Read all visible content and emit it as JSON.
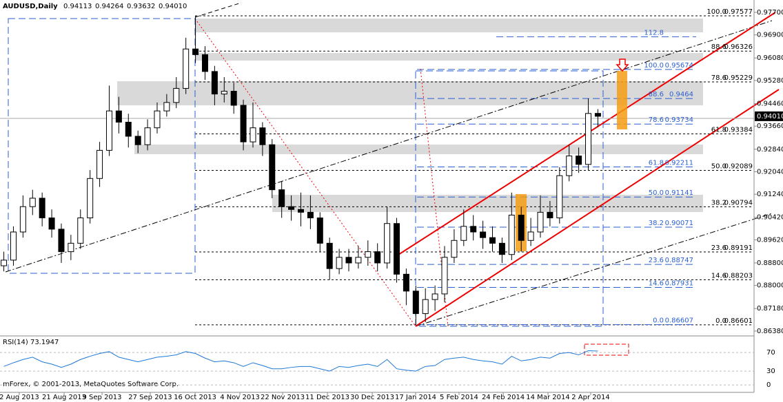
{
  "header": {
    "symbol": "AUDUSD,Daily",
    "ohlc_labels": [
      "0.94113",
      "0.94264",
      "0.93632",
      "0.94010"
    ],
    "copyright": "mForex, © 2001-2013, MetaQuotes Software Corp."
  },
  "chart_data": {
    "type": "candlestick",
    "open": [
      0.887,
      0.889,
      0.899,
      0.908,
      0.911,
      0.904,
      0.9,
      0.892,
      0.895,
      0.904,
      0.918,
      0.928,
      0.942,
      0.938,
      0.933,
      0.93,
      0.936,
      0.942,
      0.945,
      0.95,
      0.964,
      0.962,
      0.956,
      0.948,
      0.949,
      0.944,
      0.931,
      0.936,
      0.93,
      0.914,
      0.908,
      0.907,
      0.906,
      0.904,
      0.895,
      0.886,
      0.89,
      0.888,
      0.89,
      0.892,
      0.888,
      0.902,
      0.884,
      0.878,
      0.87,
      0.875,
      0.877,
      0.89,
      0.896,
      0.901,
      0.899,
      0.897,
      0.895,
      0.891,
      0.905,
      0.896,
      0.899,
      0.906,
      0.904,
      0.919,
      0.926,
      0.923,
      0.94113
    ],
    "high": [
      0.892,
      0.901,
      0.912,
      0.914,
      0.913,
      0.907,
      0.902,
      0.898,
      0.907,
      0.921,
      0.931,
      0.951,
      0.947,
      0.941,
      0.935,
      0.939,
      0.945,
      0.948,
      0.954,
      0.968,
      0.9757,
      0.965,
      0.958,
      0.954,
      0.952,
      0.946,
      0.945,
      0.938,
      0.932,
      0.917,
      0.912,
      0.913,
      0.912,
      0.906,
      0.897,
      0.893,
      0.893,
      0.894,
      0.896,
      0.895,
      0.908,
      0.904,
      0.886,
      0.88,
      0.879,
      0.88,
      0.894,
      0.9,
      0.907,
      0.905,
      0.903,
      0.901,
      0.897,
      0.913,
      0.908,
      0.904,
      0.912,
      0.91,
      0.922,
      0.93,
      0.929,
      0.9464,
      0.94264
    ],
    "low": [
      0.885,
      0.887,
      0.897,
      0.905,
      0.901,
      0.897,
      0.888,
      0.889,
      0.893,
      0.902,
      0.915,
      0.926,
      0.934,
      0.929,
      0.927,
      0.928,
      0.934,
      0.94,
      0.943,
      0.948,
      0.959,
      0.953,
      0.944,
      0.945,
      0.941,
      0.928,
      0.929,
      0.926,
      0.911,
      0.904,
      0.903,
      0.901,
      0.9,
      0.892,
      0.882,
      0.884,
      0.885,
      0.886,
      0.887,
      0.885,
      0.886,
      0.881,
      0.873,
      0.866,
      0.867,
      0.871,
      0.874,
      0.888,
      0.894,
      0.896,
      0.893,
      0.892,
      0.888,
      0.889,
      0.892,
      0.894,
      0.897,
      0.901,
      0.902,
      0.917,
      0.92,
      0.921,
      0.93632
    ],
    "close": [
      0.889,
      0.899,
      0.908,
      0.911,
      0.904,
      0.9,
      0.892,
      0.895,
      0.904,
      0.918,
      0.928,
      0.942,
      0.938,
      0.933,
      0.93,
      0.936,
      0.942,
      0.945,
      0.95,
      0.964,
      0.962,
      0.956,
      0.948,
      0.949,
      0.944,
      0.931,
      0.936,
      0.93,
      0.914,
      0.908,
      0.907,
      0.906,
      0.904,
      0.895,
      0.886,
      0.89,
      0.888,
      0.89,
      0.892,
      0.888,
      0.902,
      0.884,
      0.878,
      0.87,
      0.875,
      0.877,
      0.89,
      0.896,
      0.901,
      0.899,
      0.897,
      0.895,
      0.891,
      0.905,
      0.896,
      0.899,
      0.906,
      0.904,
      0.919,
      0.926,
      0.923,
      0.9411,
      0.9401
    ],
    "xlim": [
      -0.4,
      78.3
    ],
    "xticks": [
      {
        "value": 1.61,
        "label": "2 Aug 2013"
      },
      {
        "value": 6.29,
        "label": "21 Aug 2013"
      },
      {
        "value": 10.25,
        "label": "9 Sep 2013"
      },
      {
        "value": 15.28,
        "label": "27 Sep 2013"
      },
      {
        "value": 19.96,
        "label": "16 Oct 2013"
      },
      {
        "value": 24.64,
        "label": "4 Nov 2013"
      },
      {
        "value": 29.1,
        "label": "22 Nov 2013"
      },
      {
        "value": 33.77,
        "label": "11 Dec 2013"
      },
      {
        "value": 38.45,
        "label": "30 Dec 2013"
      },
      {
        "value": 42.98,
        "label": "17 Jan 2014"
      },
      {
        "value": 47.51,
        "label": "5 Feb 2014"
      },
      {
        "value": 52.12,
        "label": "24 Feb 2014"
      },
      {
        "value": 56.79,
        "label": "14 Mar 2014"
      },
      {
        "value": 61.25,
        "label": "2 Apr 2014"
      }
    ],
    "ylim": [
      0.8633,
      0.9814
    ],
    "yticks": [
      {
        "value": 0.977,
        "label": "0.97700"
      },
      {
        "value": 0.969,
        "label": "0.96900"
      },
      {
        "value": 0.9608,
        "label": "0.96080"
      },
      {
        "value": 0.9528,
        "label": "0.95280"
      },
      {
        "value": 0.9446,
        "label": "0.94460"
      },
      {
        "value": 0.9366,
        "label": "0.93660"
      },
      {
        "value": 0.9284,
        "label": "0.92840"
      },
      {
        "value": 0.9204,
        "label": "0.92040"
      },
      {
        "value": 0.9124,
        "label": "0.91240"
      },
      {
        "value": 0.9042,
        "label": "0.90420"
      },
      {
        "value": 0.8962,
        "label": "0.89620"
      },
      {
        "value": 0.888,
        "label": "0.88800"
      },
      {
        "value": 0.88,
        "label": "0.88000"
      },
      {
        "value": 0.8718,
        "label": "0.87180"
      },
      {
        "value": 0.8638,
        "label": "0.86380"
      }
    ],
    "last_price": {
      "value": 0.9401,
      "label": "0.94010"
    },
    "fib_sets": [
      {
        "color": "#000000",
        "levels": [
          {
            "ratio": "100.0",
            "price": 0.97577
          },
          {
            "ratio": "88.6",
            "price": 0.96326
          },
          {
            "ratio": "78.6",
            "price": 0.95229
          },
          {
            "ratio": "61.8",
            "price": 0.93384
          },
          {
            "ratio": "50.0",
            "price": 0.92089
          },
          {
            "ratio": "38.2",
            "price": 0.90794
          },
          {
            "ratio": "23.6",
            "price": 0.89191
          },
          {
            "ratio": "14.6",
            "price": 0.88203
          },
          {
            "ratio": "0.0",
            "price": 0.86601
          }
        ]
      },
      {
        "color": "#2a5fd0",
        "levels": [
          {
            "ratio": "112.8"
          },
          {
            "ratio": "100.0",
            "price": 0.95674
          },
          {
            "ratio": "88.6",
            "price": 0.9464
          },
          {
            "ratio": "78.6",
            "price": 0.93734
          },
          {
            "ratio": "61.8",
            "price": 0.92211
          },
          {
            "ratio": "50.0",
            "price": 0.91141
          },
          {
            "ratio": "38.2",
            "price": 0.90071
          },
          {
            "ratio": "23.6",
            "price": 0.88747
          },
          {
            "ratio": "14.6",
            "price": 0.87931
          },
          {
            "ratio": "0.0",
            "price": 0.86607
          }
        ]
      }
    ],
    "rsi": {
      "title": "RSI(14) 73.1947",
      "color": "#1e78d8",
      "ylim": [
        -16,
        100
      ],
      "yticks": [
        70,
        30,
        0
      ],
      "values": [
        40,
        48,
        55,
        60,
        50,
        45,
        38,
        45,
        55,
        62,
        68,
        72,
        60,
        55,
        50,
        55,
        60,
        62,
        65,
        72,
        68,
        58,
        50,
        52,
        48,
        40,
        48,
        42,
        35,
        35,
        38,
        40,
        40,
        35,
        30,
        40,
        38,
        42,
        45,
        40,
        55,
        35,
        32,
        30,
        40,
        42,
        55,
        58,
        60,
        55,
        52,
        50,
        45,
        62,
        52,
        55,
        60,
        58,
        68,
        70,
        65,
        74,
        73.1947
      ]
    }
  }
}
